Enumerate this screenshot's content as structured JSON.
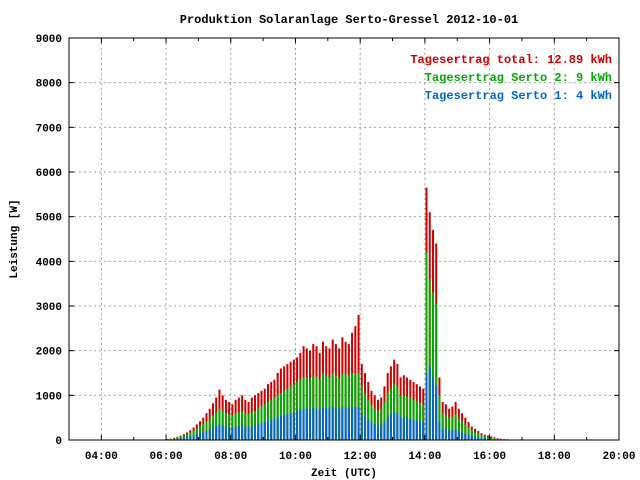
{
  "chart_data": {
    "type": "bar",
    "title": "Produktion Solaranlage Serto-Gressel 2012-10-01",
    "xlabel": "Zeit (UTC)",
    "ylabel": "Leistung [W]",
    "xlim": [
      3,
      20
    ],
    "ylim": [
      0,
      9000
    ],
    "x_ticks": [
      {
        "value": 4,
        "label": "04:00"
      },
      {
        "value": 6,
        "label": "06:00"
      },
      {
        "value": 8,
        "label": "08:00"
      },
      {
        "value": 10,
        "label": "10:00"
      },
      {
        "value": 12,
        "label": "12:00"
      },
      {
        "value": 14,
        "label": "14:00"
      },
      {
        "value": 16,
        "label": "16:00"
      },
      {
        "value": 18,
        "label": "18:00"
      },
      {
        "value": 20,
        "label": "20:00"
      }
    ],
    "y_ticks": [
      {
        "value": 0,
        "label": "0"
      },
      {
        "value": 1000,
        "label": "1000"
      },
      {
        "value": 2000,
        "label": "2000"
      },
      {
        "value": 3000,
        "label": "3000"
      },
      {
        "value": 4000,
        "label": "4000"
      },
      {
        "value": 5000,
        "label": "5000"
      },
      {
        "value": 6000,
        "label": "6000"
      },
      {
        "value": 7000,
        "label": "7000"
      },
      {
        "value": 8000,
        "label": "8000"
      },
      {
        "value": 9000,
        "label": "9000"
      }
    ],
    "grid": true,
    "legend_position": "top-right",
    "legend": [
      {
        "text": "Tagesertrag total: 12.89 kWh",
        "color": "#cc0000"
      },
      {
        "text": "Tagesertrag Serto 2: 9 kWh",
        "color": "#00aa00"
      },
      {
        "text": "Tagesertrag Serto 1: 4 kWh",
        "color": "#0066cc"
      }
    ],
    "colors": {
      "total": "#cc0000",
      "serto2": "#00aa00",
      "serto1": "#0066cc"
    },
    "series": [
      {
        "key": "total",
        "x": [
          6.05,
          6.15,
          6.25,
          6.35,
          6.45,
          6.55,
          6.65,
          6.75,
          6.85,
          6.95,
          7.05,
          7.15,
          7.25,
          7.35,
          7.45,
          7.55,
          7.65,
          7.75,
          7.85,
          7.95,
          8.05,
          8.15,
          8.25,
          8.35,
          8.45,
          8.55,
          8.65,
          8.75,
          8.85,
          8.95,
          9.05,
          9.15,
          9.25,
          9.35,
          9.45,
          9.55,
          9.65,
          9.75,
          9.85,
          9.95,
          10.05,
          10.15,
          10.25,
          10.35,
          10.45,
          10.55,
          10.65,
          10.75,
          10.85,
          10.95,
          11.05,
          11.15,
          11.25,
          11.35,
          11.45,
          11.55,
          11.65,
          11.75,
          11.85,
          11.95,
          12.05,
          12.15,
          12.25,
          12.35,
          12.45,
          12.55,
          12.65,
          12.75,
          12.85,
          12.95,
          13.05,
          13.15,
          13.25,
          13.35,
          13.45,
          13.55,
          13.65,
          13.75,
          13.85,
          13.95,
          14.05,
          14.15,
          14.25,
          14.35,
          14.45,
          14.55,
          14.65,
          14.75,
          14.85,
          14.95,
          15.05,
          15.15,
          15.25,
          15.35,
          15.45,
          15.55,
          15.65,
          15.75,
          15.85,
          15.95,
          16.05,
          16.15,
          16.25,
          16.35,
          16.45,
          16.55,
          16.65
        ],
        "values": [
          20,
          30,
          50,
          70,
          100,
          130,
          170,
          220,
          280,
          350,
          420,
          500,
          600,
          700,
          820,
          950,
          1130,
          1000,
          900,
          850,
          800,
          900,
          950,
          1000,
          900,
          850,
          950,
          1000,
          1050,
          1100,
          1150,
          1250,
          1300,
          1350,
          1500,
          1600,
          1650,
          1700,
          1750,
          1800,
          1850,
          1950,
          2100,
          2050,
          2000,
          2150,
          2100,
          1950,
          2200,
          2100,
          2050,
          2250,
          2150,
          2050,
          2300,
          2200,
          2150,
          2400,
          2550,
          2800,
          1700,
          1500,
          1300,
          1100,
          1000,
          900,
          950,
          1200,
          1500,
          1650,
          1800,
          1700,
          1400,
          1450,
          1400,
          1350,
          1300,
          1250,
          1200,
          1150,
          5650,
          5100,
          4700,
          4400,
          1400,
          850,
          800,
          700,
          750,
          850,
          700,
          600,
          500,
          400,
          300,
          250,
          200,
          150,
          120,
          100,
          80,
          60,
          40,
          30,
          20,
          15,
          10
        ]
      },
      {
        "key": "serto2",
        "x": [
          6.05,
          6.15,
          6.25,
          6.35,
          6.45,
          6.55,
          6.65,
          6.75,
          6.85,
          6.95,
          7.05,
          7.15,
          7.25,
          7.35,
          7.45,
          7.55,
          7.65,
          7.75,
          7.85,
          7.95,
          8.05,
          8.15,
          8.25,
          8.35,
          8.45,
          8.55,
          8.65,
          8.75,
          8.85,
          8.95,
          9.05,
          9.15,
          9.25,
          9.35,
          9.45,
          9.55,
          9.65,
          9.75,
          9.85,
          9.95,
          10.05,
          10.15,
          10.25,
          10.35,
          10.45,
          10.55,
          10.65,
          10.75,
          10.85,
          10.95,
          11.05,
          11.15,
          11.25,
          11.35,
          11.45,
          11.55,
          11.65,
          11.75,
          11.85,
          11.95,
          12.05,
          12.15,
          12.25,
          12.35,
          12.45,
          12.55,
          12.65,
          12.75,
          12.85,
          12.95,
          13.05,
          13.15,
          13.25,
          13.35,
          13.45,
          13.55,
          13.65,
          13.75,
          13.85,
          13.95,
          14.05,
          14.15,
          14.25,
          14.35,
          14.45,
          14.55,
          14.65,
          14.75,
          14.85,
          14.95,
          15.05,
          15.15,
          15.25,
          15.35,
          15.45,
          15.55,
          15.65,
          15.75,
          15.85,
          15.95,
          16.05,
          16.15,
          16.25,
          16.35,
          16.45,
          16.55,
          16.65
        ],
        "values": [
          15,
          25,
          40,
          55,
          80,
          100,
          130,
          170,
          210,
          260,
          310,
          360,
          420,
          480,
          550,
          620,
          700,
          650,
          600,
          580,
          560,
          600,
          620,
          650,
          600,
          580,
          620,
          650,
          700,
          750,
          800,
          850,
          900,
          950,
          1000,
          1050,
          1100,
          1150,
          1200,
          1250,
          1300,
          1350,
          1400,
          1400,
          1380,
          1450,
          1420,
          1350,
          1500,
          1450,
          1400,
          1500,
          1450,
          1400,
          1500,
          1480,
          1450,
          1500,
          1500,
          1500,
          1200,
          1050,
          900,
          780,
          700,
          650,
          700,
          850,
          1050,
          1150,
          1250,
          1200,
          1000,
          1000,
          980,
          950,
          900,
          870,
          830,
          800,
          4200,
          3600,
          3300,
          3050,
          1000,
          600,
          560,
          500,
          520,
          580,
          480,
          420,
          350,
          280,
          220,
          180,
          140,
          110,
          90,
          70,
          55,
          40,
          28,
          20,
          14,
          10,
          7
        ]
      },
      {
        "key": "serto1",
        "x": [
          6.05,
          6.15,
          6.25,
          6.35,
          6.45,
          6.55,
          6.65,
          6.75,
          6.85,
          6.95,
          7.05,
          7.15,
          7.25,
          7.35,
          7.45,
          7.55,
          7.65,
          7.75,
          7.85,
          7.95,
          8.05,
          8.15,
          8.25,
          8.35,
          8.45,
          8.55,
          8.65,
          8.75,
          8.85,
          8.95,
          9.05,
          9.15,
          9.25,
          9.35,
          9.45,
          9.55,
          9.65,
          9.75,
          9.85,
          9.95,
          10.05,
          10.15,
          10.25,
          10.35,
          10.45,
          10.55,
          10.65,
          10.75,
          10.85,
          10.95,
          11.05,
          11.15,
          11.25,
          11.35,
          11.45,
          11.55,
          11.65,
          11.75,
          11.85,
          11.95,
          12.05,
          12.15,
          12.25,
          12.35,
          12.45,
          12.55,
          12.65,
          12.75,
          12.85,
          12.95,
          13.05,
          13.15,
          13.25,
          13.35,
          13.45,
          13.55,
          13.65,
          13.75,
          13.85,
          13.95,
          14.05,
          14.15,
          14.25,
          14.35,
          14.45,
          14.55,
          14.65,
          14.75,
          14.85,
          14.95,
          15.05,
          15.15,
          15.25,
          15.35,
          15.45,
          15.55,
          15.65,
          15.75,
          15.85,
          15.95,
          16.05,
          16.15,
          16.25,
          16.35,
          16.45,
          16.55,
          16.65
        ],
        "values": [
          8,
          12,
          20,
          28,
          40,
          50,
          65,
          85,
          105,
          130,
          155,
          180,
          210,
          240,
          275,
          310,
          350,
          330,
          300,
          290,
          280,
          300,
          310,
          330,
          300,
          290,
          310,
          330,
          350,
          380,
          400,
          430,
          460,
          480,
          510,
          540,
          560,
          580,
          600,
          620,
          650,
          670,
          700,
          700,
          690,
          720,
          710,
          680,
          740,
          720,
          700,
          740,
          720,
          700,
          740,
          730,
          720,
          740,
          740,
          740,
          600,
          520,
          450,
          390,
          350,
          320,
          350,
          420,
          520,
          570,
          620,
          600,
          500,
          500,
          490,
          470,
          450,
          430,
          410,
          400,
          1500,
          1650,
          1400,
          1200,
          400,
          250,
          230,
          210,
          220,
          240,
          200,
          175,
          145,
          115,
          90,
          75,
          60,
          45,
          38,
          30,
          22,
          16,
          12,
          8,
          6,
          4,
          3
        ]
      }
    ]
  }
}
